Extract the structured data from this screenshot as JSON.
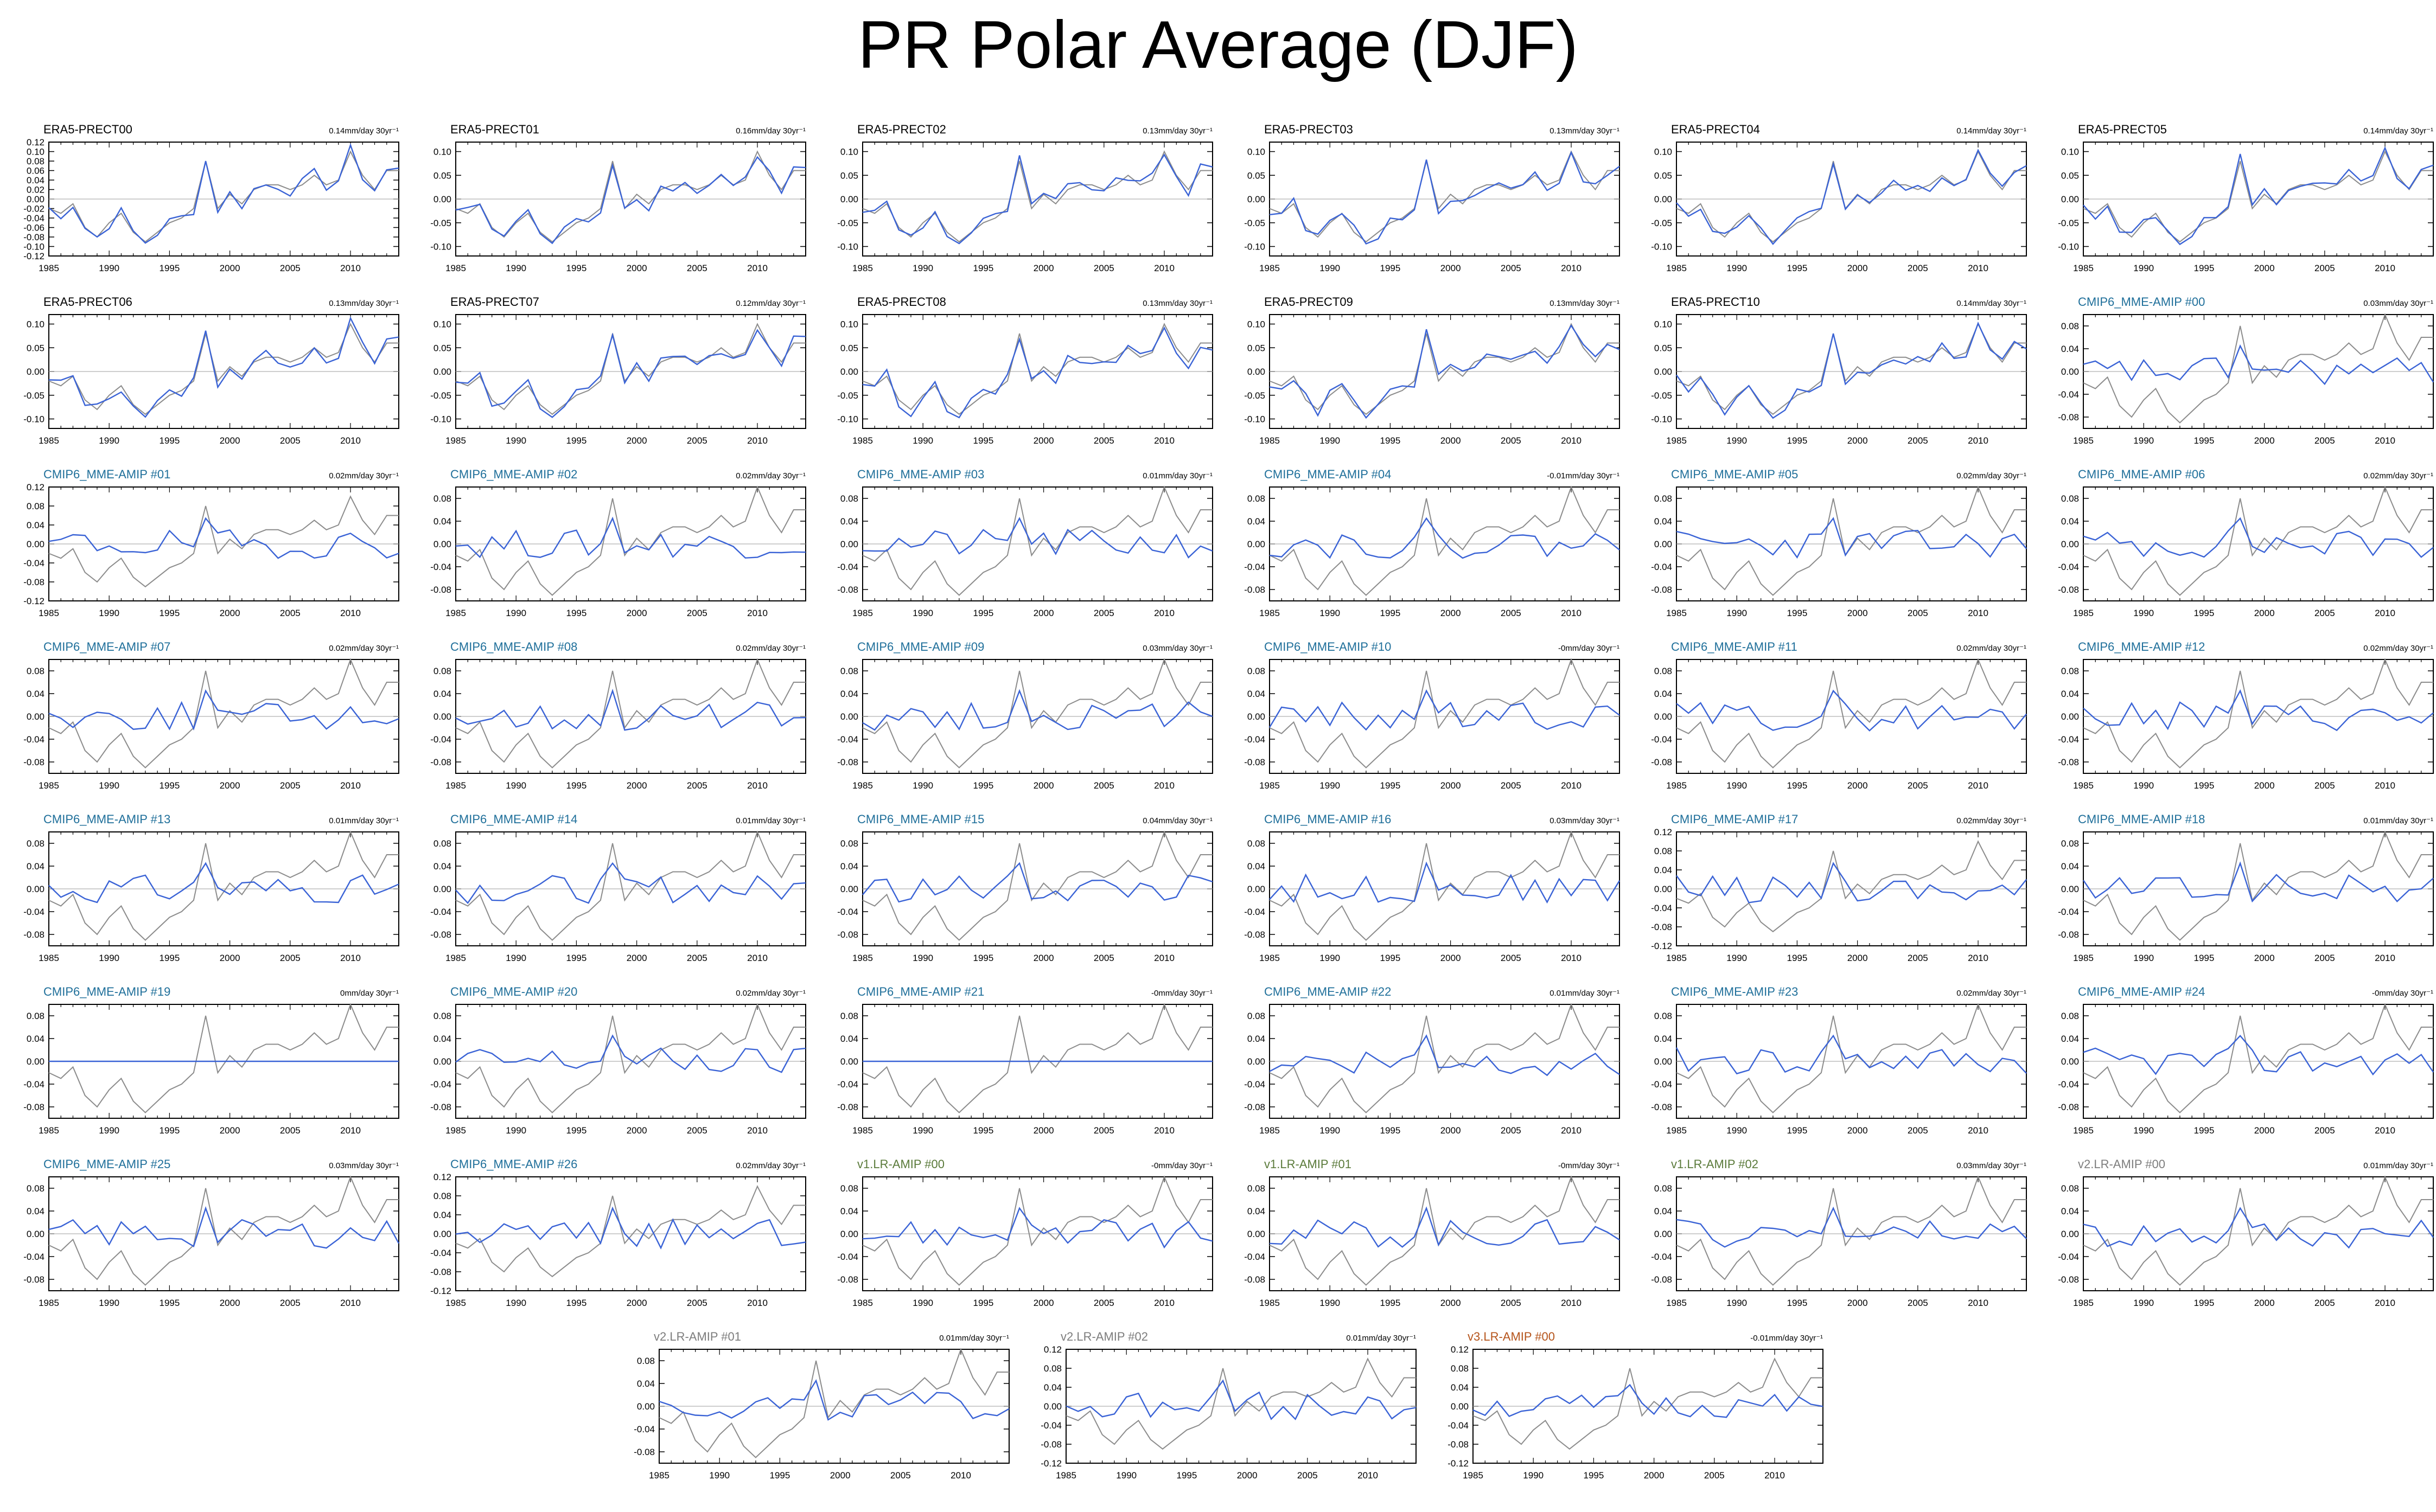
{
  "title": "PR Polar Average (DJF)",
  "colors": {
    "model": "#3a63d6",
    "reference": "#8c8c8c",
    "zero_line": "#b0b0b0",
    "label_era5": "#000000",
    "label_cmip6": "#1f6f9a",
    "label_v1": "#5a7a3a",
    "label_v2": "#7d7d7d",
    "label_v3": "#b5541b"
  },
  "chart_data": {
    "type": "line",
    "x_ticks": [
      1985,
      1990,
      1995,
      2000,
      2005,
      2010
    ],
    "x_range": [
      1985,
      2014
    ],
    "reference_series": [
      -0.02,
      -0.03,
      -0.01,
      -0.06,
      -0.08,
      -0.05,
      -0.03,
      -0.07,
      -0.09,
      -0.07,
      -0.05,
      -0.04,
      -0.02,
      0.08,
      -0.02,
      0.01,
      -0.01,
      0.02,
      0.03,
      0.03,
      0.02,
      0.03,
      0.05,
      0.03,
      0.04,
      0.1,
      0.05,
      0.02,
      0.06,
      0.06
    ],
    "panels": [
      {
        "title": "ERA5-PRECT00",
        "trend": "0.14mm/day 30yr⁻¹",
        "group": "era5",
        "ylim": [
          -0.12,
          0.12
        ],
        "yticks": [
          "0.12",
          "0.10",
          "0.08",
          "0.06",
          "0.04",
          "0.02",
          "0.00",
          "-0.02",
          "-0.04",
          "-0.06",
          "-0.08",
          "-0.10",
          "-0.12"
        ],
        "model_line": "era5",
        "amp": 1.0,
        "seed": 0
      },
      {
        "title": "ERA5-PRECT01",
        "trend": "0.16mm/day 30yr⁻¹",
        "group": "era5",
        "ylim": [
          -0.12,
          0.12
        ],
        "yticks": [
          "0.10",
          "0.05",
          "0.00",
          "-0.05",
          "-0.10"
        ],
        "model_line": "era5",
        "amp": 1.0,
        "seed": 1
      },
      {
        "title": "ERA5-PRECT02",
        "trend": "0.13mm/day 30yr⁻¹",
        "group": "era5",
        "ylim": [
          -0.12,
          0.12
        ],
        "yticks": [
          "0.10",
          "0.05",
          "0.00",
          "-0.05",
          "-0.10"
        ],
        "model_line": "era5",
        "amp": 1.0,
        "seed": 2
      },
      {
        "title": "ERA5-PRECT03",
        "trend": "0.13mm/day 30yr⁻¹",
        "group": "era5",
        "ylim": [
          -0.12,
          0.12
        ],
        "yticks": [
          "0.10",
          "0.05",
          "0.00",
          "-0.05",
          "-0.10"
        ],
        "model_line": "era5",
        "amp": 1.0,
        "seed": 3
      },
      {
        "title": "ERA5-PRECT04",
        "trend": "0.14mm/day 30yr⁻¹",
        "group": "era5",
        "ylim": [
          -0.12,
          0.12
        ],
        "yticks": [
          "0.10",
          "0.05",
          "0.00",
          "-0.05",
          "-0.10"
        ],
        "model_line": "era5",
        "amp": 1.0,
        "seed": 4
      },
      {
        "title": "ERA5-PRECT05",
        "trend": "0.14mm/day 30yr⁻¹",
        "group": "era5",
        "ylim": [
          -0.12,
          0.12
        ],
        "yticks": [
          "0.10",
          "0.05",
          "0.00",
          "-0.05",
          "-0.10"
        ],
        "model_line": "era5",
        "amp": 1.0,
        "seed": 5
      },
      {
        "title": "ERA5-PRECT06",
        "trend": "0.13mm/day 30yr⁻¹",
        "group": "era5",
        "ylim": [
          -0.12,
          0.12
        ],
        "yticks": [
          "0.10",
          "0.05",
          "0.00",
          "-0.05",
          "-0.10"
        ],
        "model_line": "era5",
        "amp": 1.0,
        "seed": 6
      },
      {
        "title": "ERA5-PRECT07",
        "trend": "0.12mm/day 30yr⁻¹",
        "group": "era5",
        "ylim": [
          -0.12,
          0.12
        ],
        "yticks": [
          "0.10",
          "0.05",
          "0.00",
          "-0.05",
          "-0.10"
        ],
        "model_line": "era5",
        "amp": 1.0,
        "seed": 7
      },
      {
        "title": "ERA5-PRECT08",
        "trend": "0.13mm/day 30yr⁻¹",
        "group": "era5",
        "ylim": [
          -0.12,
          0.12
        ],
        "yticks": [
          "0.10",
          "0.05",
          "0.00",
          "-0.05",
          "-0.10"
        ],
        "model_line": "era5",
        "amp": 1.0,
        "seed": 8
      },
      {
        "title": "ERA5-PRECT09",
        "trend": "0.13mm/day 30yr⁻¹",
        "group": "era5",
        "ylim": [
          -0.12,
          0.12
        ],
        "yticks": [
          "0.10",
          "0.05",
          "0.00",
          "-0.05",
          "-0.10"
        ],
        "model_line": "era5",
        "amp": 1.0,
        "seed": 9
      },
      {
        "title": "ERA5-PRECT10",
        "trend": "0.14mm/day 30yr⁻¹",
        "group": "era5",
        "ylim": [
          -0.12,
          0.12
        ],
        "yticks": [
          "0.10",
          "0.05",
          "0.00",
          "-0.05",
          "-0.10"
        ],
        "model_line": "era5",
        "amp": 1.0,
        "seed": 10
      },
      {
        "title": "CMIP6_MME-AMIP  #00",
        "trend": "0.03mm/day 30yr⁻¹",
        "group": "cmip6",
        "ylim": [
          -0.1,
          0.1
        ],
        "yticks": [
          "0.08",
          "0.04",
          "0.00",
          "-0.04",
          "-0.08"
        ],
        "model_line": "noise",
        "amp": 0.025,
        "seed": 11
      },
      {
        "title": "CMIP6_MME-AMIP  #01",
        "trend": "0.02mm/day 30yr⁻¹",
        "group": "cmip6",
        "ylim": [
          -0.12,
          0.12
        ],
        "yticks": [
          "0.12",
          "0.08",
          "0.04",
          "0.00",
          "-0.04",
          "-0.08",
          "-0.12"
        ],
        "model_line": "noise",
        "amp": 0.03,
        "seed": 12
      },
      {
        "title": "CMIP6_MME-AMIP  #02",
        "trend": "0.02mm/day 30yr⁻¹",
        "group": "cmip6",
        "ylim": [
          -0.1,
          0.1
        ],
        "yticks": [
          "0.08",
          "0.04",
          "0.00",
          "-0.04",
          "-0.08"
        ],
        "model_line": "noise",
        "amp": 0.025,
        "seed": 13
      },
      {
        "title": "CMIP6_MME-AMIP  #03",
        "trend": "0.01mm/day 30yr⁻¹",
        "group": "cmip6",
        "ylim": [
          -0.1,
          0.1
        ],
        "yticks": [
          "0.08",
          "0.04",
          "0.00",
          "-0.04",
          "-0.08"
        ],
        "model_line": "noise",
        "amp": 0.025,
        "seed": 14
      },
      {
        "title": "CMIP6_MME-AMIP  #04",
        "trend": "-0.01mm/day 30yr⁻¹",
        "group": "cmip6",
        "ylim": [
          -0.1,
          0.1
        ],
        "yticks": [
          "0.08",
          "0.04",
          "0.00",
          "-0.04",
          "-0.08"
        ],
        "model_line": "noise",
        "amp": 0.025,
        "seed": 15
      },
      {
        "title": "CMIP6_MME-AMIP  #05",
        "trend": "0.02mm/day 30yr⁻¹",
        "group": "cmip6",
        "ylim": [
          -0.1,
          0.1
        ],
        "yticks": [
          "0.08",
          "0.04",
          "0.00",
          "-0.04",
          "-0.08"
        ],
        "model_line": "noise",
        "amp": 0.025,
        "seed": 16
      },
      {
        "title": "CMIP6_MME-AMIP  #06",
        "trend": "0.02mm/day 30yr⁻¹",
        "group": "cmip6",
        "ylim": [
          -0.1,
          0.1
        ],
        "yticks": [
          "0.08",
          "0.04",
          "0.00",
          "-0.04",
          "-0.08"
        ],
        "model_line": "noise",
        "amp": 0.025,
        "seed": 17
      },
      {
        "title": "CMIP6_MME-AMIP  #07",
        "trend": "0.02mm/day 30yr⁻¹",
        "group": "cmip6",
        "ylim": [
          -0.1,
          0.1
        ],
        "yticks": [
          "0.08",
          "0.04",
          "0.00",
          "-0.04",
          "-0.08"
        ],
        "model_line": "noise",
        "amp": 0.025,
        "seed": 18
      },
      {
        "title": "CMIP6_MME-AMIP  #08",
        "trend": "0.02mm/day 30yr⁻¹",
        "group": "cmip6",
        "ylim": [
          -0.1,
          0.1
        ],
        "yticks": [
          "0.08",
          "0.04",
          "0.00",
          "-0.04",
          "-0.08"
        ],
        "model_line": "noise",
        "amp": 0.025,
        "seed": 19
      },
      {
        "title": "CMIP6_MME-AMIP  #09",
        "trend": "0.03mm/day 30yr⁻¹",
        "group": "cmip6",
        "ylim": [
          -0.1,
          0.1
        ],
        "yticks": [
          "0.08",
          "0.04",
          "0.00",
          "-0.04",
          "-0.08"
        ],
        "model_line": "noise",
        "amp": 0.025,
        "seed": 20
      },
      {
        "title": "CMIP6_MME-AMIP  #10",
        "trend": "-0mm/day 30yr⁻¹",
        "group": "cmip6",
        "ylim": [
          -0.1,
          0.1
        ],
        "yticks": [
          "0.08",
          "0.04",
          "0.00",
          "-0.04",
          "-0.08"
        ],
        "model_line": "noise",
        "amp": 0.025,
        "seed": 21
      },
      {
        "title": "CMIP6_MME-AMIP  #11",
        "trend": "0.02mm/day 30yr⁻¹",
        "group": "cmip6",
        "ylim": [
          -0.1,
          0.1
        ],
        "yticks": [
          "0.08",
          "0.04",
          "0.00",
          "-0.04",
          "-0.08"
        ],
        "model_line": "noise",
        "amp": 0.025,
        "seed": 22
      },
      {
        "title": "CMIP6_MME-AMIP  #12",
        "trend": "0.02mm/day 30yr⁻¹",
        "group": "cmip6",
        "ylim": [
          -0.1,
          0.1
        ],
        "yticks": [
          "0.08",
          "0.04",
          "0.00",
          "-0.04",
          "-0.08"
        ],
        "model_line": "noise",
        "amp": 0.025,
        "seed": 23
      },
      {
        "title": "CMIP6_MME-AMIP  #13",
        "trend": "0.01mm/day 30yr⁻¹",
        "group": "cmip6",
        "ylim": [
          -0.1,
          0.1
        ],
        "yticks": [
          "0.08",
          "0.04",
          "0.00",
          "-0.04",
          "-0.08"
        ],
        "model_line": "noise",
        "amp": 0.025,
        "seed": 24
      },
      {
        "title": "CMIP6_MME-AMIP  #14",
        "trend": "0.01mm/day 30yr⁻¹",
        "group": "cmip6",
        "ylim": [
          -0.1,
          0.1
        ],
        "yticks": [
          "0.08",
          "0.04",
          "0.00",
          "-0.04",
          "-0.08"
        ],
        "model_line": "noise",
        "amp": 0.025,
        "seed": 25
      },
      {
        "title": "CMIP6_MME-AMIP  #15",
        "trend": "0.04mm/day 30yr⁻¹",
        "group": "cmip6",
        "ylim": [
          -0.1,
          0.1
        ],
        "yticks": [
          "0.08",
          "0.04",
          "0.00",
          "-0.04",
          "-0.08"
        ],
        "model_line": "noise",
        "amp": 0.025,
        "seed": 26
      },
      {
        "title": "CMIP6_MME-AMIP  #16",
        "trend": "0.03mm/day 30yr⁻¹",
        "group": "cmip6",
        "ylim": [
          -0.1,
          0.1
        ],
        "yticks": [
          "0.08",
          "0.04",
          "0.00",
          "-0.04",
          "-0.08"
        ],
        "model_line": "noise",
        "amp": 0.025,
        "seed": 27
      },
      {
        "title": "CMIP6_MME-AMIP  #17",
        "trend": "0.02mm/day 30yr⁻¹",
        "group": "cmip6",
        "ylim": [
          -0.12,
          0.12
        ],
        "yticks": [
          "0.12",
          "0.08",
          "0.04",
          "0.00",
          "-0.04",
          "-0.08",
          "-0.12"
        ],
        "model_line": "noise",
        "amp": 0.03,
        "seed": 28
      },
      {
        "title": "CMIP6_MME-AMIP  #18",
        "trend": "0.01mm/day 30yr⁻¹",
        "group": "cmip6",
        "ylim": [
          -0.1,
          0.1
        ],
        "yticks": [
          "0.08",
          "0.04",
          "0.00",
          "-0.04",
          "-0.08"
        ],
        "model_line": "noise",
        "amp": 0.025,
        "seed": 29
      },
      {
        "title": "CMIP6_MME-AMIP  #19",
        "trend": "0mm/day 30yr⁻¹",
        "group": "cmip6",
        "ylim": [
          -0.1,
          0.1
        ],
        "yticks": [
          "0.08",
          "0.04",
          "0.00",
          "-0.04",
          "-0.08"
        ],
        "model_line": "flat",
        "amp": 0,
        "seed": 30
      },
      {
        "title": "CMIP6_MME-AMIP  #20",
        "trend": "0.02mm/day 30yr⁻¹",
        "group": "cmip6",
        "ylim": [
          -0.1,
          0.1
        ],
        "yticks": [
          "0.08",
          "0.04",
          "0.00",
          "-0.04",
          "-0.08"
        ],
        "model_line": "noise",
        "amp": 0.025,
        "seed": 31
      },
      {
        "title": "CMIP6_MME-AMIP  #21",
        "trend": "-0mm/day 30yr⁻¹",
        "group": "cmip6",
        "ylim": [
          -0.1,
          0.1
        ],
        "yticks": [
          "0.08",
          "0.04",
          "0.00",
          "-0.04",
          "-0.08"
        ],
        "model_line": "flat",
        "amp": 0,
        "seed": 32
      },
      {
        "title": "CMIP6_MME-AMIP  #22",
        "trend": "0.01mm/day 30yr⁻¹",
        "group": "cmip6",
        "ylim": [
          -0.1,
          0.1
        ],
        "yticks": [
          "0.08",
          "0.04",
          "0.00",
          "-0.04",
          "-0.08"
        ],
        "model_line": "noise",
        "amp": 0.025,
        "seed": 33
      },
      {
        "title": "CMIP6_MME-AMIP  #23",
        "trend": "0.02mm/day 30yr⁻¹",
        "group": "cmip6",
        "ylim": [
          -0.1,
          0.1
        ],
        "yticks": [
          "0.08",
          "0.04",
          "0.00",
          "-0.04",
          "-0.08"
        ],
        "model_line": "noise",
        "amp": 0.025,
        "seed": 34
      },
      {
        "title": "CMIP6_MME-AMIP  #24",
        "trend": "-0mm/day 30yr⁻¹",
        "group": "cmip6",
        "ylim": [
          -0.1,
          0.1
        ],
        "yticks": [
          "0.08",
          "0.04",
          "0.00",
          "-0.04",
          "-0.08"
        ],
        "model_line": "noise",
        "amp": 0.025,
        "seed": 35
      },
      {
        "title": "CMIP6_MME-AMIP  #25",
        "trend": "0.03mm/day 30yr⁻¹",
        "group": "cmip6",
        "ylim": [
          -0.1,
          0.1
        ],
        "yticks": [
          "0.08",
          "0.04",
          "0.00",
          "-0.04",
          "-0.08"
        ],
        "model_line": "noise",
        "amp": 0.025,
        "seed": 36
      },
      {
        "title": "CMIP6_MME-AMIP  #26",
        "trend": "0.02mm/day 30yr⁻¹",
        "group": "cmip6",
        "ylim": [
          -0.12,
          0.12
        ],
        "yticks": [
          "0.12",
          "0.08",
          "0.04",
          "0.00",
          "-0.04",
          "-0.08",
          "-0.12"
        ],
        "model_line": "noise",
        "amp": 0.03,
        "seed": 37
      },
      {
        "title": "v1.LR-AMIP  #00",
        "trend": "-0mm/day 30yr⁻¹",
        "group": "v1",
        "ylim": [
          -0.1,
          0.1
        ],
        "yticks": [
          "0.08",
          "0.04",
          "0.00",
          "-0.04",
          "-0.08"
        ],
        "model_line": "noise",
        "amp": 0.025,
        "seed": 38
      },
      {
        "title": "v1.LR-AMIP  #01",
        "trend": "-0mm/day 30yr⁻¹",
        "group": "v1",
        "ylim": [
          -0.1,
          0.1
        ],
        "yticks": [
          "0.08",
          "0.04",
          "0.00",
          "-0.04",
          "-0.08"
        ],
        "model_line": "noise",
        "amp": 0.025,
        "seed": 39
      },
      {
        "title": "v1.LR-AMIP  #02",
        "trend": "0.03mm/day 30yr⁻¹",
        "group": "v1",
        "ylim": [
          -0.1,
          0.1
        ],
        "yticks": [
          "0.08",
          "0.04",
          "0.00",
          "-0.04",
          "-0.08"
        ],
        "model_line": "noise",
        "amp": 0.025,
        "seed": 40
      },
      {
        "title": "v2.LR-AMIP  #00",
        "trend": "0.01mm/day 30yr⁻¹",
        "group": "v2",
        "ylim": [
          -0.1,
          0.1
        ],
        "yticks": [
          "0.08",
          "0.04",
          "0.00",
          "-0.04",
          "-0.08"
        ],
        "model_line": "noise",
        "amp": 0.025,
        "seed": 41
      },
      {
        "title": "v2.LR-AMIP  #01",
        "trend": "0.01mm/day 30yr⁻¹",
        "group": "v2",
        "ylim": [
          -0.1,
          0.1
        ],
        "yticks": [
          "0.08",
          "0.04",
          "0.00",
          "-0.04",
          "-0.08"
        ],
        "model_line": "noise",
        "amp": 0.025,
        "seed": 42
      },
      {
        "title": "v2.LR-AMIP  #02",
        "trend": "0.01mm/day 30yr⁻¹",
        "group": "v2",
        "ylim": [
          -0.12,
          0.12
        ],
        "yticks": [
          "0.12",
          "0.08",
          "0.04",
          "0.00",
          "-0.04",
          "-0.08",
          "-0.12"
        ],
        "model_line": "noise",
        "amp": 0.03,
        "seed": 43
      },
      {
        "title": "v3.LR-AMIP  #00",
        "trend": "-0.01mm/day 30yr⁻¹",
        "group": "v3",
        "ylim": [
          -0.12,
          0.12
        ],
        "yticks": [
          "0.12",
          "0.08",
          "0.04",
          "0.00",
          "-0.04",
          "-0.08",
          "-0.12"
        ],
        "model_line": "noise",
        "amp": 0.025,
        "seed": 44
      }
    ]
  }
}
